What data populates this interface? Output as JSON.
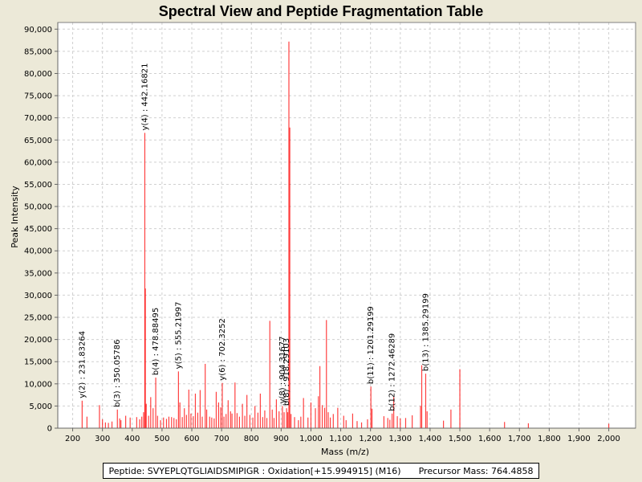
{
  "colors": {
    "peak": "#ff0000",
    "grid": "#d0d0d0",
    "plot_bg": "#ffffff",
    "window_bg": "#ece9d8"
  },
  "chart_data": {
    "type": "bar",
    "title": "Spectral View and Peptide Fragmentation Table",
    "xlabel": "Mass (m/z)",
    "ylabel": "Peak Intensity",
    "xlim": [
      150,
      2090
    ],
    "ylim": [
      0,
      91500
    ],
    "grid": true,
    "x_ticks": [
      200,
      300,
      400,
      500,
      600,
      700,
      800,
      900,
      1000,
      1100,
      1200,
      1300,
      1400,
      1500,
      1600,
      1700,
      1800,
      1900,
      2000
    ],
    "x_tick_labels": [
      "200",
      "300",
      "400",
      "500",
      "600",
      "700",
      "800",
      "900",
      "1,000",
      "1,100",
      "1,200",
      "1,300",
      "1,400",
      "1,500",
      "1,600",
      "1,700",
      "1,800",
      "1,900",
      "2,000"
    ],
    "y_ticks": [
      0,
      5000,
      10000,
      15000,
      20000,
      25000,
      30000,
      35000,
      40000,
      45000,
      50000,
      55000,
      60000,
      65000,
      70000,
      75000,
      80000,
      85000,
      90000
    ],
    "y_tick_labels": [
      "0",
      "5,000",
      "10,000",
      "15,000",
      "20,000",
      "25,000",
      "30,000",
      "35,000",
      "40,000",
      "45,000",
      "50,000",
      "55,000",
      "60,000",
      "65,000",
      "70,000",
      "75,000",
      "80,000",
      "85,000",
      "90,000"
    ],
    "peaks": [
      {
        "mz": 231.8,
        "i": 6200
      },
      {
        "mz": 248,
        "i": 2600
      },
      {
        "mz": 290,
        "i": 5200
      },
      {
        "mz": 300,
        "i": 2000
      },
      {
        "mz": 310,
        "i": 1300
      },
      {
        "mz": 320,
        "i": 1200
      },
      {
        "mz": 332,
        "i": 1500
      },
      {
        "mz": 350.1,
        "i": 4200
      },
      {
        "mz": 358,
        "i": 2200
      },
      {
        "mz": 362,
        "i": 1800
      },
      {
        "mz": 378,
        "i": 2800
      },
      {
        "mz": 393,
        "i": 2400
      },
      {
        "mz": 415,
        "i": 2500
      },
      {
        "mz": 425,
        "i": 2000
      },
      {
        "mz": 432,
        "i": 2600
      },
      {
        "mz": 438,
        "i": 3600
      },
      {
        "mz": 442.2,
        "i": 66600
      },
      {
        "mz": 444,
        "i": 31500
      },
      {
        "mz": 447,
        "i": 5500
      },
      {
        "mz": 455,
        "i": 2800
      },
      {
        "mz": 462,
        "i": 7000
      },
      {
        "mz": 470,
        "i": 4500
      },
      {
        "mz": 478.9,
        "i": 11400
      },
      {
        "mz": 485,
        "i": 2800
      },
      {
        "mz": 495,
        "i": 1800
      },
      {
        "mz": 505,
        "i": 2400
      },
      {
        "mz": 515,
        "i": 2100
      },
      {
        "mz": 523,
        "i": 2600
      },
      {
        "mz": 532,
        "i": 2500
      },
      {
        "mz": 540,
        "i": 2300
      },
      {
        "mz": 548,
        "i": 2000
      },
      {
        "mz": 555.2,
        "i": 12800
      },
      {
        "mz": 560,
        "i": 5800
      },
      {
        "mz": 568,
        "i": 2500
      },
      {
        "mz": 575,
        "i": 4500
      },
      {
        "mz": 582,
        "i": 3000
      },
      {
        "mz": 590,
        "i": 8700
      },
      {
        "mz": 597,
        "i": 3300
      },
      {
        "mz": 605,
        "i": 2700
      },
      {
        "mz": 612,
        "i": 7800
      },
      {
        "mz": 620,
        "i": 3500
      },
      {
        "mz": 628,
        "i": 8600
      },
      {
        "mz": 635,
        "i": 2600
      },
      {
        "mz": 645,
        "i": 14500
      },
      {
        "mz": 650,
        "i": 4200
      },
      {
        "mz": 660,
        "i": 2600
      },
      {
        "mz": 667,
        "i": 2400
      },
      {
        "mz": 675,
        "i": 2200
      },
      {
        "mz": 682,
        "i": 8200
      },
      {
        "mz": 690,
        "i": 5800
      },
      {
        "mz": 697,
        "i": 4700
      },
      {
        "mz": 702.3,
        "i": 10200
      },
      {
        "mz": 708,
        "i": 2600
      },
      {
        "mz": 715,
        "i": 3200
      },
      {
        "mz": 722,
        "i": 6300
      },
      {
        "mz": 730,
        "i": 3800
      },
      {
        "mz": 735,
        "i": 3300
      },
      {
        "mz": 745,
        "i": 10300
      },
      {
        "mz": 752,
        "i": 3400
      },
      {
        "mz": 760,
        "i": 2600
      },
      {
        "mz": 770,
        "i": 5500
      },
      {
        "mz": 778,
        "i": 2800
      },
      {
        "mz": 785,
        "i": 7500
      },
      {
        "mz": 795,
        "i": 3000
      },
      {
        "mz": 805,
        "i": 2400
      },
      {
        "mz": 812,
        "i": 5000
      },
      {
        "mz": 822,
        "i": 3500
      },
      {
        "mz": 830,
        "i": 7800
      },
      {
        "mz": 838,
        "i": 2500
      },
      {
        "mz": 845,
        "i": 4000
      },
      {
        "mz": 852,
        "i": 2300
      },
      {
        "mz": 862,
        "i": 24200
      },
      {
        "mz": 870,
        "i": 4200
      },
      {
        "mz": 876,
        "i": 2300
      },
      {
        "mz": 884,
        "i": 6500
      },
      {
        "mz": 893,
        "i": 3800
      },
      {
        "mz": 904.3,
        "i": 5000
      },
      {
        "mz": 910,
        "i": 3600
      },
      {
        "mz": 918.3,
        "i": 4500
      },
      {
        "mz": 922,
        "i": 3600
      },
      {
        "mz": 926,
        "i": 87200
      },
      {
        "mz": 929,
        "i": 67800
      },
      {
        "mz": 933,
        "i": 3200
      },
      {
        "mz": 945,
        "i": 2500
      },
      {
        "mz": 958,
        "i": 1800
      },
      {
        "mz": 966,
        "i": 2600
      },
      {
        "mz": 975,
        "i": 6800
      },
      {
        "mz": 990,
        "i": 2400
      },
      {
        "mz": 1000,
        "i": 5800
      },
      {
        "mz": 1015,
        "i": 4500
      },
      {
        "mz": 1025,
        "i": 7200
      },
      {
        "mz": 1030,
        "i": 14000
      },
      {
        "mz": 1038,
        "i": 5200
      },
      {
        "mz": 1046,
        "i": 4600
      },
      {
        "mz": 1052,
        "i": 24400
      },
      {
        "mz": 1058,
        "i": 3600
      },
      {
        "mz": 1065,
        "i": 2400
      },
      {
        "mz": 1075,
        "i": 3200
      },
      {
        "mz": 1090,
        "i": 4600
      },
      {
        "mz": 1110,
        "i": 2800
      },
      {
        "mz": 1118,
        "i": 1800
      },
      {
        "mz": 1140,
        "i": 3300
      },
      {
        "mz": 1155,
        "i": 1600
      },
      {
        "mz": 1170,
        "i": 1300
      },
      {
        "mz": 1190,
        "i": 2000
      },
      {
        "mz": 1201.3,
        "i": 9400
      },
      {
        "mz": 1205,
        "i": 4400
      },
      {
        "mz": 1245,
        "i": 2700
      },
      {
        "mz": 1258,
        "i": 2300
      },
      {
        "mz": 1265,
        "i": 1900
      },
      {
        "mz": 1272.5,
        "i": 3300
      },
      {
        "mz": 1278,
        "i": 7000
      },
      {
        "mz": 1290,
        "i": 2700
      },
      {
        "mz": 1300,
        "i": 2200
      },
      {
        "mz": 1318,
        "i": 2300
      },
      {
        "mz": 1340,
        "i": 2900
      },
      {
        "mz": 1368,
        "i": 5000
      },
      {
        "mz": 1372,
        "i": 14200
      },
      {
        "mz": 1385.3,
        "i": 12300
      },
      {
        "mz": 1390,
        "i": 3800
      },
      {
        "mz": 1445,
        "i": 1700
      },
      {
        "mz": 1470,
        "i": 4200
      },
      {
        "mz": 1500,
        "i": 13300
      },
      {
        "mz": 1650,
        "i": 1400
      },
      {
        "mz": 1730,
        "i": 1100
      },
      {
        "mz": 2000,
        "i": 1000
      }
    ],
    "annotations": [
      {
        "mz": 231.83264,
        "i": 6200,
        "label": "y(2) : 231.83264"
      },
      {
        "mz": 350.05786,
        "i": 4200,
        "label": "b(3) : 350.05786"
      },
      {
        "mz": 442.16821,
        "i": 66600,
        "label": "y(4) : 442.16821"
      },
      {
        "mz": 478.88495,
        "i": 11400,
        "label": "b(4) : 478.88495"
      },
      {
        "mz": 555.21997,
        "i": 12800,
        "label": "y(5) : 555.21997"
      },
      {
        "mz": 702.3252,
        "i": 10200,
        "label": "y(6) : 702.3252"
      },
      {
        "mz": 904.31677,
        "i": 5000,
        "label": "y(8) : 904.31677"
      },
      {
        "mz": 918.29103,
        "i": 4500,
        "label": "b(8) : 918.29103"
      },
      {
        "mz": 1201.29199,
        "i": 9400,
        "label": "b(11) : 1201.29199"
      },
      {
        "mz": 1272.46289,
        "i": 3300,
        "label": "b(12) : 1272.46289"
      },
      {
        "mz": 1385.29199,
        "i": 12300,
        "label": "b(13) : 1385.29199"
      }
    ]
  },
  "footer": {
    "peptide": "Peptide: SVYEPLQTGLIAIDSMIPIGR : Oxidation[+15.994915] (M16)",
    "precursor": "Precursor Mass: 764.4858"
  }
}
